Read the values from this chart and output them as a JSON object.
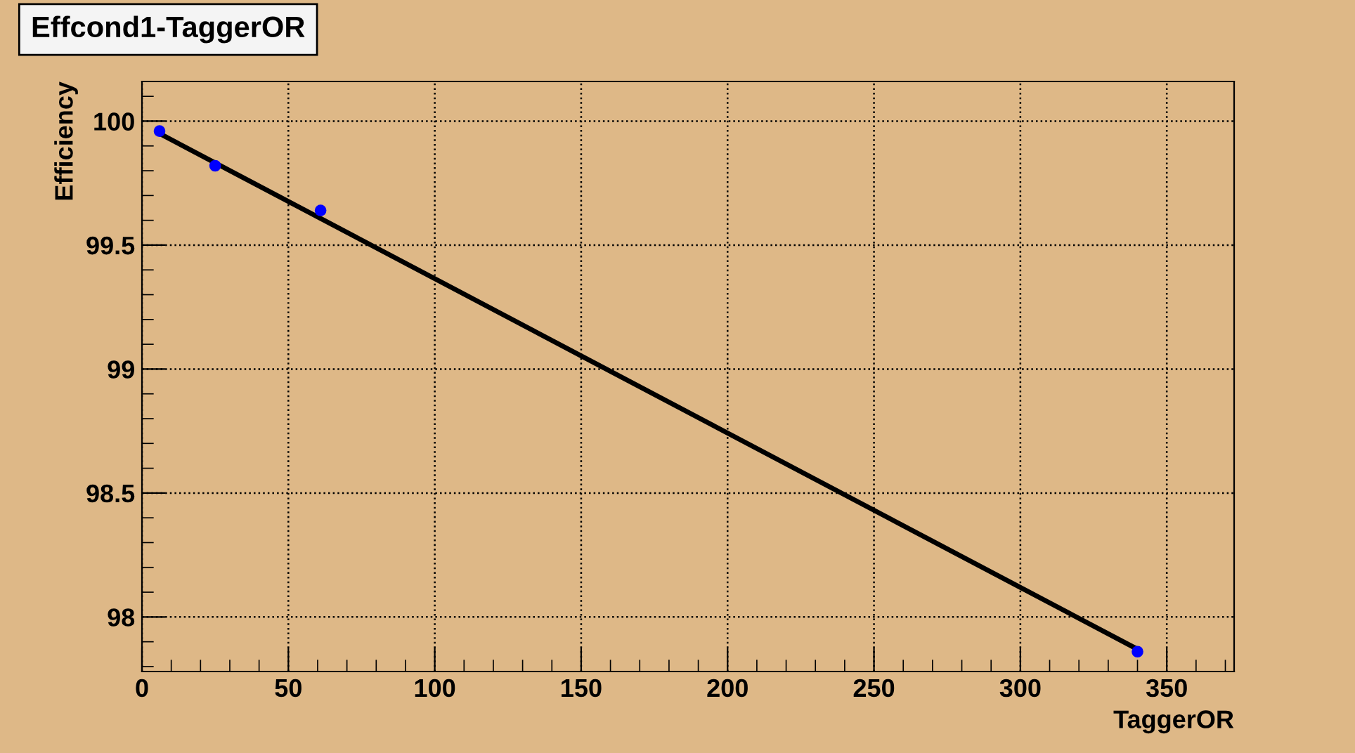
{
  "chart_data": {
    "type": "scatter",
    "title": "Effcond1-TaggerOR",
    "xlabel": "TaggerOR",
    "ylabel": "Efficiency",
    "series": [
      {
        "marker": "circle",
        "color": "#0000ff",
        "x": [
          6,
          25,
          61,
          340
        ],
        "values": [
          99.96,
          99.82,
          99.64,
          97.86
        ]
      },
      {
        "type": "line",
        "marker": "none",
        "color": "#000000",
        "x": [
          6,
          340
        ],
        "values": [
          99.95,
          97.87
        ]
      }
    ],
    "xlim": [
      0,
      373
    ],
    "ylim": [
      97.78,
      100.16
    ],
    "xticks": [
      0,
      50,
      100,
      150,
      200,
      250,
      300,
      350
    ],
    "yticks": [
      98,
      98.5,
      99,
      99.5,
      100
    ],
    "grid": true,
    "line_style": "solid",
    "legend": false
  }
}
